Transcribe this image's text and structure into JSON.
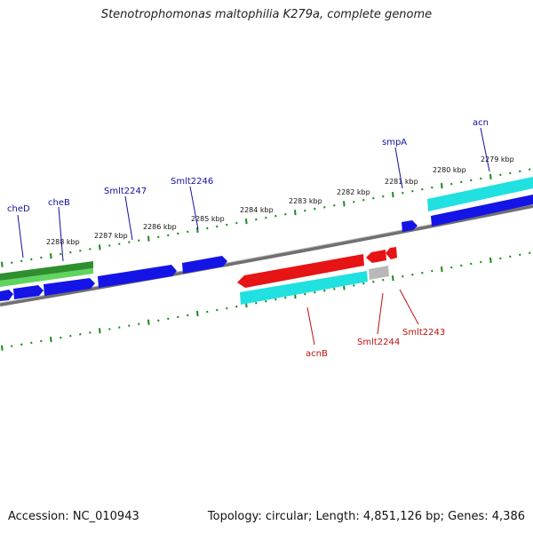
{
  "title": "Stenotrophomonas maltophilia K279a, complete genome",
  "footer": {
    "accession": "Accession: NC_010943",
    "stats": "Topology: circular; Length: 4,851,126 bp; Genes: 4,386"
  },
  "colors": {
    "forward_gene": "#1414e6",
    "reverse_gene": "#e61414",
    "cds_cyan": "#20e8e8",
    "green_feature": "#2ea82e",
    "backbone": "#808080",
    "ticks": "#1a8a1a",
    "forward_label": "#1010a0",
    "reverse_label": "#c01010"
  },
  "scale_labels": [
    "2288 kbp",
    "2287 kbp",
    "2286 kbp",
    "2285 kbp",
    "2284 kbp",
    "2283 kbp",
    "2282 kbp",
    "2281 kbp",
    "2280 kbp",
    "2279 kbp"
  ],
  "forward_gene_labels": [
    "cheD",
    "cheB",
    "Smlt2247",
    "Smlt2246",
    "smpA",
    "acn"
  ],
  "reverse_gene_labels": [
    "acnB",
    "Smlt2244",
    "Smlt2243"
  ]
}
